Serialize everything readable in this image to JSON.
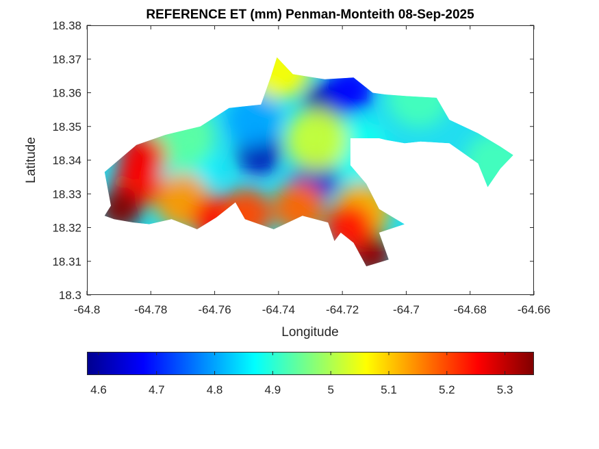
{
  "chart_data": {
    "type": "heatmap",
    "title": "REFERENCE ET (mm) Penman-Monteith 08-Sep-2025",
    "xlabel": "Longitude",
    "ylabel": "Latitude",
    "xlim": [
      -64.8,
      -64.66
    ],
    "ylim": [
      18.3,
      18.38
    ],
    "x_ticks": [
      -64.8,
      -64.78,
      -64.76,
      -64.74,
      -64.72,
      -64.7,
      -64.68,
      -64.66
    ],
    "x_tick_labels": [
      "-64.8",
      "-64.78",
      "-64.76",
      "-64.74",
      "-64.72",
      "-64.7",
      "-64.68",
      "-64.66"
    ],
    "y_ticks": [
      18.3,
      18.31,
      18.32,
      18.33,
      18.34,
      18.35,
      18.36,
      18.37,
      18.38
    ],
    "y_tick_labels": [
      "18.3",
      "18.31",
      "18.32",
      "18.33",
      "18.34",
      "18.35",
      "18.36",
      "18.37",
      "18.38"
    ],
    "colormap": "jet",
    "colorbar": {
      "range": [
        4.58,
        5.35
      ],
      "ticks": [
        4.6,
        4.7,
        4.8,
        4.9,
        5.0,
        5.1,
        5.2,
        5.3
      ],
      "tick_labels": [
        "4.6",
        "4.7",
        "4.8",
        "4.9",
        "5",
        "5.1",
        "5.2",
        "5.3"
      ]
    },
    "region_outline": [
      [
        -64.7925,
        18.3265
      ],
      [
        -64.7945,
        18.3365
      ],
      [
        -64.7845,
        18.3445
      ],
      [
        -64.7755,
        18.3475
      ],
      [
        -64.7645,
        18.35
      ],
      [
        -64.7555,
        18.3555
      ],
      [
        -64.7455,
        18.3565
      ],
      [
        -64.7425,
        18.3645
      ],
      [
        -64.7405,
        18.3705
      ],
      [
        -64.7355,
        18.3655
      ],
      [
        -64.7255,
        18.364
      ],
      [
        -64.7165,
        18.3645
      ],
      [
        -64.7105,
        18.36
      ],
      [
        -64.7065,
        18.3595
      ],
      [
        -64.7,
        18.359
      ],
      [
        -64.6905,
        18.3585
      ],
      [
        -64.6865,
        18.352
      ],
      [
        -64.6775,
        18.348
      ],
      [
        -64.6705,
        18.344
      ],
      [
        -64.6665,
        18.3415
      ],
      [
        -64.6705,
        18.3375
      ],
      [
        -64.6745,
        18.332
      ],
      [
        -64.6775,
        18.339
      ],
      [
        -64.6865,
        18.345
      ],
      [
        -64.6955,
        18.3455
      ],
      [
        -64.7005,
        18.345
      ],
      [
        -64.7065,
        18.346
      ],
      [
        -64.7085,
        18.3465
      ],
      [
        -64.7175,
        18.3465
      ],
      [
        -64.7175,
        18.3385
      ],
      [
        -64.7125,
        18.333
      ],
      [
        -64.7085,
        18.3255
      ],
      [
        -64.7005,
        18.321
      ],
      [
        -64.7085,
        18.3185
      ],
      [
        -64.7055,
        18.3105
      ],
      [
        -64.7125,
        18.3085
      ],
      [
        -64.7165,
        18.3155
      ],
      [
        -64.7205,
        18.3185
      ],
      [
        -64.7225,
        18.316
      ],
      [
        -64.7245,
        18.3215
      ],
      [
        -64.7325,
        18.3235
      ],
      [
        -64.7415,
        18.3195
      ],
      [
        -64.7505,
        18.3225
      ],
      [
        -64.7535,
        18.3275
      ],
      [
        -64.7595,
        18.323
      ],
      [
        -64.7655,
        18.3195
      ],
      [
        -64.7735,
        18.3225
      ],
      [
        -64.7805,
        18.321
      ],
      [
        -64.7855,
        18.3215
      ],
      [
        -64.7915,
        18.3225
      ],
      [
        -64.7945,
        18.3235
      ]
    ],
    "et_features": [
      {
        "lon": -64.7255,
        "lat": 18.357,
        "value": 4.6
      },
      {
        "lon": -64.746,
        "lat": 18.3425,
        "value": 4.62
      },
      {
        "lon": -64.728,
        "lat": 18.3355,
        "value": 4.64
      },
      {
        "lon": -64.7175,
        "lat": 18.361,
        "value": 4.68
      },
      {
        "lon": -64.748,
        "lat": 18.352,
        "value": 4.8
      },
      {
        "lon": -64.768,
        "lat": 18.338,
        "value": 4.86
      },
      {
        "lon": -64.77,
        "lat": 18.347,
        "value": 4.94
      },
      {
        "lon": -64.715,
        "lat": 18.343,
        "value": 4.88
      },
      {
        "lon": -64.696,
        "lat": 18.359,
        "value": 4.92
      },
      {
        "lon": -64.672,
        "lat": 18.339,
        "value": 4.92
      },
      {
        "lon": -64.728,
        "lat": 18.346,
        "value": 5.02
      },
      {
        "lon": -64.7395,
        "lat": 18.367,
        "value": 5.06
      },
      {
        "lon": -64.77,
        "lat": 18.328,
        "value": 5.14
      },
      {
        "lon": -64.714,
        "lat": 18.325,
        "value": 5.12
      },
      {
        "lon": -64.784,
        "lat": 18.333,
        "value": 5.24
      },
      {
        "lon": -64.7595,
        "lat": 18.3225,
        "value": 5.25
      },
      {
        "lon": -64.7825,
        "lat": 18.341,
        "value": 5.26
      },
      {
        "lon": -64.711,
        "lat": 18.312,
        "value": 5.34
      },
      {
        "lon": -64.7895,
        "lat": 18.3255,
        "value": 5.35
      },
      {
        "lon": -64.718,
        "lat": 18.32,
        "value": 5.24
      },
      {
        "lon": -64.7335,
        "lat": 18.326,
        "value": 5.18
      },
      {
        "lon": -64.75,
        "lat": 18.324,
        "value": 5.2
      }
    ]
  }
}
